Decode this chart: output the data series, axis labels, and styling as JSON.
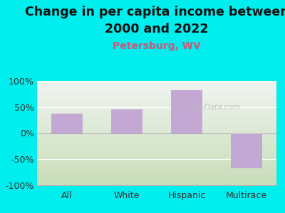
{
  "categories": [
    "All",
    "White",
    "Hispanic",
    "Multirace"
  ],
  "values": [
    38,
    45,
    82,
    -68
  ],
  "bar_color": "#C4A8D4",
  "title_line1": "Change in per capita income between",
  "title_line2": "2000 and 2022",
  "subtitle": "Petersburg, WV",
  "subtitle_color": "#CC5577",
  "background_color": "#00EEEE",
  "plot_bg_top": "#F0F4F0",
  "plot_bg_bottom": "#C8DDB8",
  "ylim": [
    -100,
    100
  ],
  "yticks": [
    -100,
    -50,
    0,
    50,
    100
  ],
  "ytick_labels": [
    "-100%",
    "-50%",
    "0%",
    "50%",
    "100%"
  ],
  "watermark": "City-Data.com",
  "title_fontsize": 12.5,
  "subtitle_fontsize": 10,
  "tick_fontsize": 9,
  "bar_width": 0.52
}
